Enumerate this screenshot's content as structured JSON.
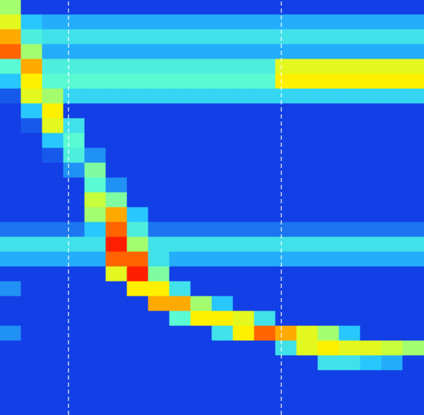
{
  "chart_data": {
    "type": "heatmap",
    "xlim": [
      0,
      20
    ],
    "ylim": [
      0,
      28
    ],
    "tick_labels": false,
    "grid": false,
    "color_range": [
      0,
      1
    ],
    "vlines": [
      3.23,
      13.27
    ],
    "cells": [
      [
        0.6,
        0.05,
        0.05,
        0.05,
        0.05,
        0.05,
        0.05,
        0.05,
        0.05,
        0.05,
        0.05,
        0.05,
        0.05,
        0.05,
        0.05,
        0.05,
        0.05,
        0.05,
        0.05,
        0.05
      ],
      [
        0.7,
        0.3,
        0.25,
        0.25,
        0.25,
        0.25,
        0.25,
        0.25,
        0.25,
        0.25,
        0.25,
        0.25,
        0.25,
        0.25,
        0.25,
        0.25,
        0.25,
        0.25,
        0.25,
        0.25
      ],
      [
        0.8,
        0.45,
        0.4,
        0.4,
        0.4,
        0.4,
        0.4,
        0.4,
        0.4,
        0.4,
        0.4,
        0.4,
        0.4,
        0.4,
        0.4,
        0.4,
        0.4,
        0.4,
        0.4,
        0.4
      ],
      [
        0.85,
        0.6,
        0.25,
        0.25,
        0.25,
        0.25,
        0.25,
        0.25,
        0.25,
        0.25,
        0.25,
        0.25,
        0.25,
        0.25,
        0.25,
        0.25,
        0.25,
        0.25,
        0.25,
        0.25
      ],
      [
        0.5,
        0.8,
        0.45,
        0.45,
        0.45,
        0.45,
        0.45,
        0.45,
        0.45,
        0.45,
        0.45,
        0.45,
        0.45,
        0.7,
        0.7,
        0.7,
        0.7,
        0.7,
        0.7,
        0.7
      ],
      [
        0.3,
        0.75,
        0.5,
        0.5,
        0.5,
        0.5,
        0.5,
        0.5,
        0.5,
        0.5,
        0.5,
        0.5,
        0.5,
        0.75,
        0.75,
        0.75,
        0.75,
        0.75,
        0.75,
        0.75
      ],
      [
        0.1,
        0.7,
        0.6,
        0.35,
        0.35,
        0.35,
        0.35,
        0.35,
        0.35,
        0.35,
        0.35,
        0.35,
        0.35,
        0.35,
        0.35,
        0.35,
        0.35,
        0.35,
        0.35,
        0.35
      ],
      [
        0.05,
        0.3,
        0.75,
        0.05,
        0.05,
        0.05,
        0.05,
        0.05,
        0.05,
        0.05,
        0.05,
        0.05,
        0.05,
        0.05,
        0.05,
        0.05,
        0.05,
        0.05,
        0.05,
        0.05
      ],
      [
        0.05,
        0.1,
        0.7,
        0.4,
        0.05,
        0.05,
        0.05,
        0.05,
        0.05,
        0.05,
        0.05,
        0.05,
        0.05,
        0.05,
        0.05,
        0.05,
        0.05,
        0.05,
        0.05,
        0.05
      ],
      [
        0.05,
        0.05,
        0.3,
        0.5,
        0.05,
        0.05,
        0.05,
        0.05,
        0.05,
        0.05,
        0.05,
        0.05,
        0.05,
        0.05,
        0.05,
        0.05,
        0.05,
        0.05,
        0.05,
        0.05
      ],
      [
        0.05,
        0.05,
        0.1,
        0.45,
        0.2,
        0.05,
        0.05,
        0.05,
        0.05,
        0.05,
        0.05,
        0.05,
        0.05,
        0.05,
        0.05,
        0.05,
        0.05,
        0.05,
        0.05,
        0.05
      ],
      [
        0.05,
        0.05,
        0.05,
        0.2,
        0.55,
        0.05,
        0.05,
        0.05,
        0.05,
        0.05,
        0.05,
        0.05,
        0.05,
        0.05,
        0.05,
        0.05,
        0.05,
        0.05,
        0.05,
        0.05
      ],
      [
        0.05,
        0.05,
        0.05,
        0.05,
        0.5,
        0.2,
        0.05,
        0.05,
        0.05,
        0.05,
        0.05,
        0.05,
        0.05,
        0.05,
        0.05,
        0.05,
        0.05,
        0.05,
        0.05,
        0.05
      ],
      [
        0.05,
        0.05,
        0.05,
        0.05,
        0.65,
        0.55,
        0.05,
        0.05,
        0.05,
        0.05,
        0.05,
        0.05,
        0.05,
        0.05,
        0.05,
        0.05,
        0.05,
        0.05,
        0.05,
        0.05
      ],
      [
        0.05,
        0.05,
        0.05,
        0.05,
        0.6,
        0.8,
        0.3,
        0.05,
        0.05,
        0.05,
        0.05,
        0.05,
        0.05,
        0.05,
        0.05,
        0.05,
        0.05,
        0.05,
        0.05,
        0.05
      ],
      [
        0.15,
        0.15,
        0.15,
        0.15,
        0.3,
        0.85,
        0.45,
        0.15,
        0.15,
        0.15,
        0.15,
        0.15,
        0.15,
        0.15,
        0.15,
        0.15,
        0.15,
        0.15,
        0.15,
        0.15
      ],
      [
        0.4,
        0.4,
        0.4,
        0.4,
        0.4,
        0.9,
        0.6,
        0.4,
        0.4,
        0.4,
        0.4,
        0.4,
        0.4,
        0.4,
        0.4,
        0.4,
        0.4,
        0.4,
        0.4,
        0.4
      ],
      [
        0.25,
        0.25,
        0.25,
        0.25,
        0.25,
        0.85,
        0.85,
        0.4,
        0.25,
        0.25,
        0.25,
        0.25,
        0.25,
        0.25,
        0.25,
        0.25,
        0.25,
        0.25,
        0.25,
        0.25
      ],
      [
        0.05,
        0.05,
        0.05,
        0.05,
        0.05,
        0.7,
        0.9,
        0.55,
        0.05,
        0.05,
        0.05,
        0.05,
        0.05,
        0.05,
        0.05,
        0.05,
        0.05,
        0.05,
        0.05,
        0.05
      ],
      [
        0.2,
        0.05,
        0.05,
        0.05,
        0.05,
        0.05,
        0.75,
        0.75,
        0.4,
        0.05,
        0.05,
        0.05,
        0.05,
        0.05,
        0.05,
        0.05,
        0.05,
        0.05,
        0.05,
        0.05
      ],
      [
        0.05,
        0.05,
        0.05,
        0.05,
        0.05,
        0.05,
        0.05,
        0.8,
        0.8,
        0.6,
        0.3,
        0.05,
        0.05,
        0.05,
        0.05,
        0.05,
        0.05,
        0.05,
        0.05,
        0.05
      ],
      [
        0.05,
        0.05,
        0.05,
        0.05,
        0.05,
        0.05,
        0.05,
        0.05,
        0.5,
        0.75,
        0.75,
        0.7,
        0.4,
        0.05,
        0.05,
        0.05,
        0.05,
        0.05,
        0.05,
        0.05
      ],
      [
        0.2,
        0.05,
        0.05,
        0.05,
        0.05,
        0.05,
        0.05,
        0.05,
        0.05,
        0.05,
        0.4,
        0.75,
        0.85,
        0.8,
        0.7,
        0.6,
        0.3,
        0.05,
        0.05,
        0.05
      ],
      [
        0.05,
        0.05,
        0.05,
        0.05,
        0.05,
        0.05,
        0.05,
        0.05,
        0.05,
        0.05,
        0.05,
        0.05,
        0.05,
        0.4,
        0.7,
        0.75,
        0.7,
        0.7,
        0.65,
        0.6
      ],
      [
        0.05,
        0.05,
        0.05,
        0.05,
        0.05,
        0.05,
        0.05,
        0.05,
        0.05,
        0.05,
        0.05,
        0.05,
        0.05,
        0.05,
        0.05,
        0.4,
        0.4,
        0.3,
        0.25,
        0.05
      ],
      [
        0.05,
        0.05,
        0.05,
        0.05,
        0.05,
        0.05,
        0.05,
        0.05,
        0.05,
        0.05,
        0.05,
        0.05,
        0.05,
        0.05,
        0.05,
        0.05,
        0.05,
        0.05,
        0.05,
        0.05
      ],
      [
        0.05,
        0.05,
        0.05,
        0.05,
        0.05,
        0.05,
        0.05,
        0.05,
        0.05,
        0.05,
        0.05,
        0.05,
        0.05,
        0.05,
        0.05,
        0.05,
        0.05,
        0.05,
        0.05,
        0.05
      ],
      [
        0.05,
        0.05,
        0.05,
        0.05,
        0.05,
        0.05,
        0.05,
        0.05,
        0.05,
        0.05,
        0.05,
        0.05,
        0.05,
        0.05,
        0.05,
        0.05,
        0.05,
        0.05,
        0.05,
        0.05
      ]
    ]
  }
}
